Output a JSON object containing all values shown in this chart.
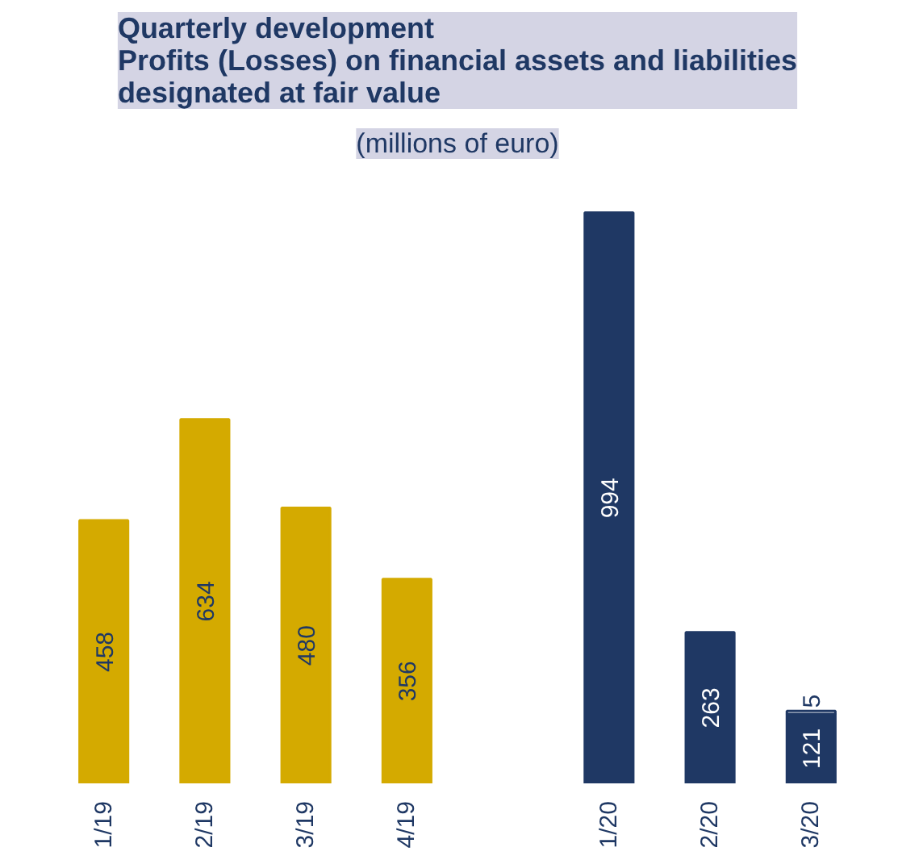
{
  "chart_data": {
    "type": "bar",
    "title": "Quarterly development\nProfits (Losses) on financial assets and liabilities\ndesignated at fair value",
    "subtitle": "(millions of euro)",
    "categories": [
      "1/19",
      "2/19",
      "3/19",
      "4/19",
      null,
      "1/20",
      "2/20",
      "3/20"
    ],
    "stacked": true,
    "data_labels": true,
    "grid": false,
    "series": [
      {
        "color": "#d4aa00",
        "values": [
          458,
          634,
          480,
          356,
          null,
          null,
          null,
          null
        ]
      },
      {
        "color": "#1f3864",
        "values": [
          null,
          null,
          null,
          null,
          null,
          994,
          263,
          121
        ]
      },
      {
        "color": "#ffffff",
        "values": [
          null,
          null,
          null,
          null,
          null,
          null,
          null,
          5
        ]
      }
    ]
  }
}
